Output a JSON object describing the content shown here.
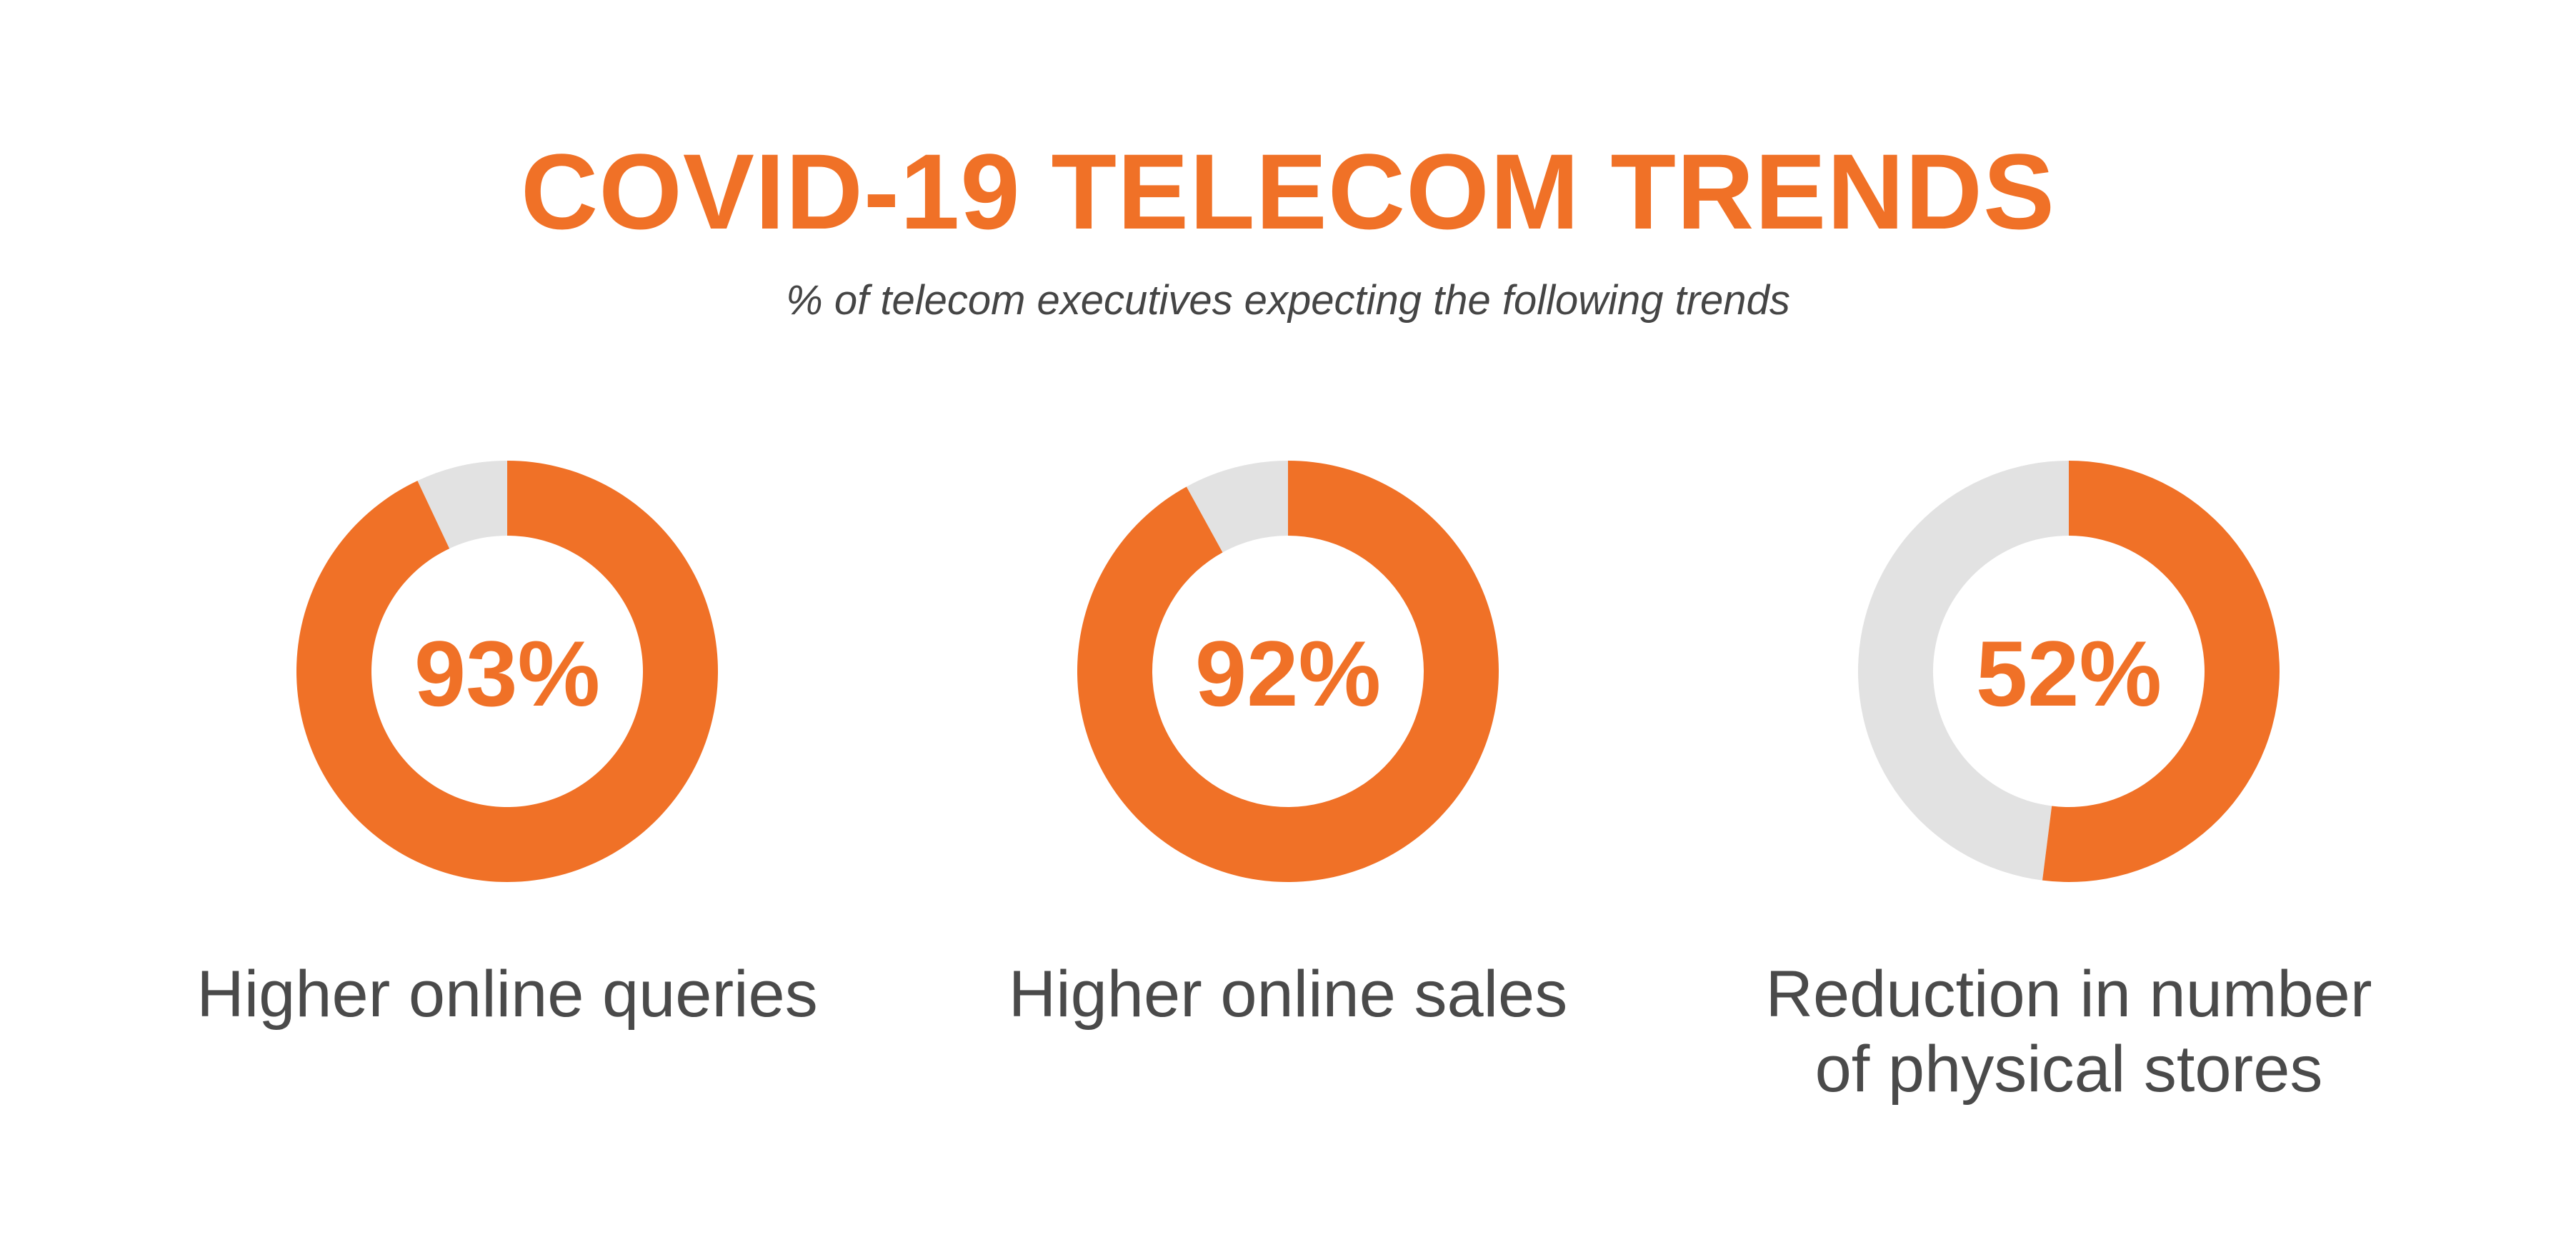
{
  "title": "COVID-19 TELECOM TRENDS",
  "subtitle": "% of telecom executives expecting the following trends",
  "colors": {
    "accent": "#f07127",
    "remainder": "#e2e2e2",
    "label": "#4a4a4a"
  },
  "chart_data": [
    {
      "type": "pie",
      "value": 93,
      "value_label": "93%",
      "category": "Higher online queries"
    },
    {
      "type": "pie",
      "value": 92,
      "value_label": "92%",
      "category": "Higher online sales"
    },
    {
      "type": "pie",
      "value": 52,
      "value_label": "52%",
      "category_lines": [
        "Reduction in number",
        "of physical stores"
      ]
    }
  ]
}
